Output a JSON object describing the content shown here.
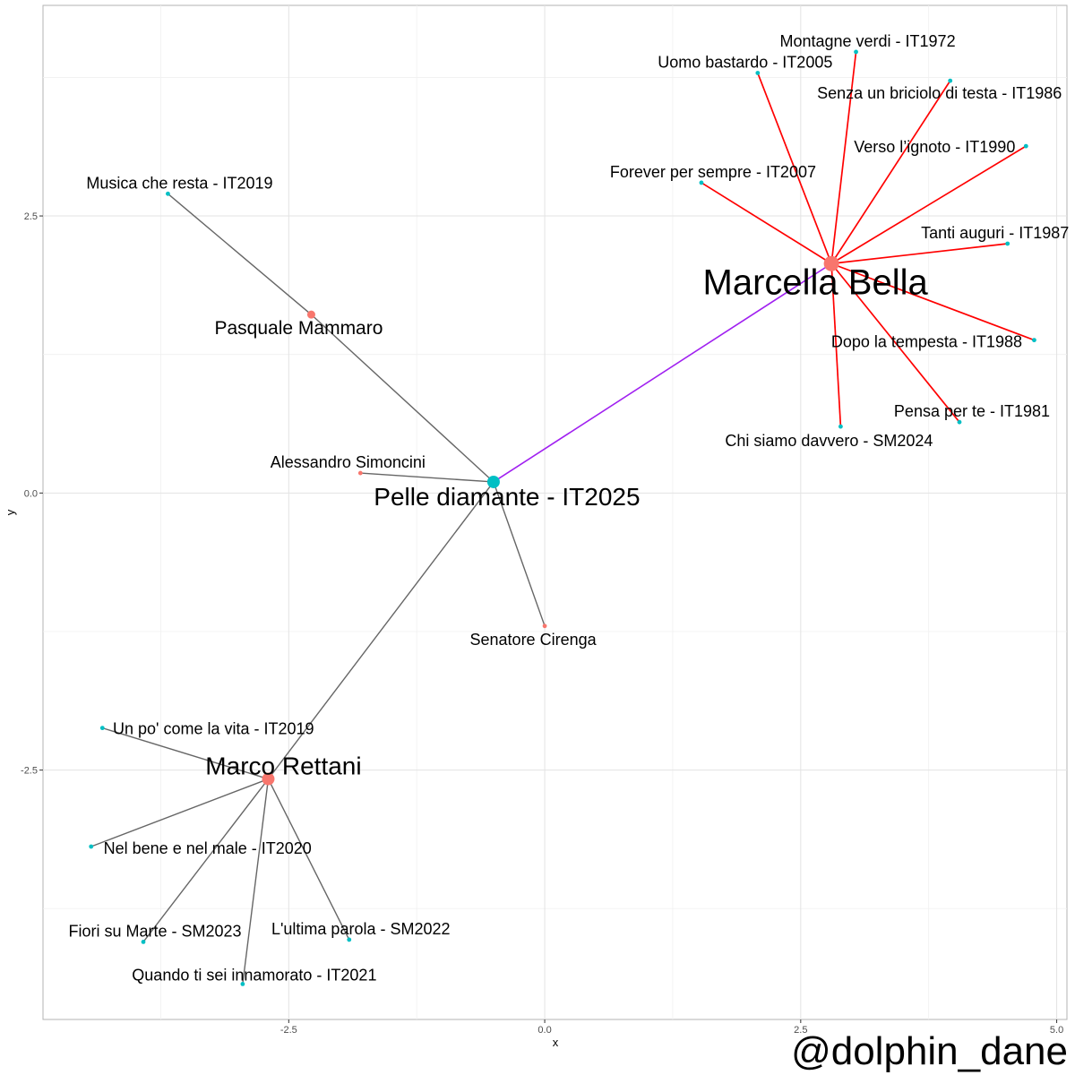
{
  "chart_data": {
    "type": "network",
    "xlabel": "x",
    "ylabel": "y",
    "xlim": [
      -4.9,
      5.1
    ],
    "ylim": [
      -4.75,
      4.4
    ],
    "x_ticks": [
      -2.5,
      0.0,
      2.5,
      5.0
    ],
    "x_tick_labels": [
      "-2.5",
      "0.0",
      "2.5",
      "5.0"
    ],
    "y_ticks": [
      -2.5,
      0.0,
      2.5
    ],
    "y_tick_labels": [
      "-2.5",
      "0.0",
      "2.5"
    ],
    "grid": true,
    "colors": {
      "artist": "#F8766D",
      "song": "#00BFC4",
      "edge_default": "#666666",
      "edge_marcella": "#FF0000",
      "edge_bridge": "#A020F0"
    },
    "nodes": [
      {
        "id": "pelle",
        "label": "Pelle diamante - IT2025",
        "kind": "song",
        "x": -0.5,
        "y": 0.1,
        "size": "large"
      },
      {
        "id": "marcella",
        "label": "Marcella Bella",
        "kind": "artist",
        "x": 2.8,
        "y": 2.07,
        "size": "xlarge"
      },
      {
        "id": "rettani",
        "label": "Marco Rettani",
        "kind": "artist",
        "x": -2.7,
        "y": -2.58,
        "size": "large"
      },
      {
        "id": "mammaro",
        "label": "Pasquale Mammaro",
        "kind": "artist",
        "x": -2.28,
        "y": 1.61,
        "size": "small"
      },
      {
        "id": "simoncini",
        "label": "Alessandro Simoncini",
        "kind": "artist",
        "x": -1.8,
        "y": 0.18,
        "size": "tiny"
      },
      {
        "id": "cirenga",
        "label": "Senatore Cirenga",
        "kind": "artist",
        "x": 0.0,
        "y": -1.2,
        "size": "tiny"
      },
      {
        "id": "musica",
        "label": "Musica che resta - IT2019",
        "kind": "song",
        "x": -3.68,
        "y": 2.7,
        "size": "tiny"
      },
      {
        "id": "montagne",
        "label": "Montagne verdi - IT1972",
        "kind": "song",
        "x": 3.04,
        "y": 3.98,
        "size": "tiny"
      },
      {
        "id": "uomo",
        "label": "Uomo bastardo - IT2005",
        "kind": "song",
        "x": 2.08,
        "y": 3.79,
        "size": "tiny"
      },
      {
        "id": "senza",
        "label": "Senza un briciolo di testa - IT1986",
        "kind": "song",
        "x": 3.96,
        "y": 3.72,
        "size": "tiny"
      },
      {
        "id": "verso",
        "label": "Verso l’ignoto - IT1990",
        "kind": "song",
        "x": 4.7,
        "y": 3.13,
        "size": "tiny"
      },
      {
        "id": "forever",
        "label": "Forever per sempre - IT2007",
        "kind": "song",
        "x": 1.53,
        "y": 2.8,
        "size": "tiny"
      },
      {
        "id": "tanti",
        "label": "Tanti auguri - IT1987",
        "kind": "song",
        "x": 4.52,
        "y": 2.25,
        "size": "tiny"
      },
      {
        "id": "dopo",
        "label": "Dopo la tempesta - IT1988",
        "kind": "song",
        "x": 4.78,
        "y": 1.38,
        "size": "tiny"
      },
      {
        "id": "pensa",
        "label": "Pensa per te - IT1981",
        "kind": "song",
        "x": 4.05,
        "y": 0.64,
        "size": "tiny"
      },
      {
        "id": "chi",
        "label": "Chi siamo davvero - SM2024",
        "kind": "song",
        "x": 2.89,
        "y": 0.6,
        "size": "tiny"
      },
      {
        "id": "unpo",
        "label": "Un po' come la vita - IT2019",
        "kind": "song",
        "x": -4.32,
        "y": -2.12,
        "size": "tiny"
      },
      {
        "id": "nelbene",
        "label": "Nel bene e nel male - IT2020",
        "kind": "song",
        "x": -4.43,
        "y": -3.19,
        "size": "tiny"
      },
      {
        "id": "fiori",
        "label": "Fiori su Marte - SM2023",
        "kind": "song",
        "x": -3.92,
        "y": -4.05,
        "size": "tiny"
      },
      {
        "id": "ultima",
        "label": "L'ultima parola - SM2022",
        "kind": "song",
        "x": -1.91,
        "y": -4.03,
        "size": "tiny"
      },
      {
        "id": "quando",
        "label": "Quando ti sei innamorato - IT2021",
        "kind": "song",
        "x": -2.95,
        "y": -4.43,
        "size": "tiny"
      }
    ],
    "edges": [
      {
        "source": "pelle",
        "target": "marcella",
        "color": "bridge"
      },
      {
        "source": "pelle",
        "target": "mammaro",
        "color": "default"
      },
      {
        "source": "pelle",
        "target": "simoncini",
        "color": "default"
      },
      {
        "source": "pelle",
        "target": "cirenga",
        "color": "default"
      },
      {
        "source": "pelle",
        "target": "rettani",
        "color": "default"
      },
      {
        "source": "mammaro",
        "target": "musica",
        "color": "default"
      },
      {
        "source": "marcella",
        "target": "montagne",
        "color": "marcella"
      },
      {
        "source": "marcella",
        "target": "uomo",
        "color": "marcella"
      },
      {
        "source": "marcella",
        "target": "senza",
        "color": "marcella"
      },
      {
        "source": "marcella",
        "target": "verso",
        "color": "marcella"
      },
      {
        "source": "marcella",
        "target": "forever",
        "color": "marcella"
      },
      {
        "source": "marcella",
        "target": "tanti",
        "color": "marcella"
      },
      {
        "source": "marcella",
        "target": "dopo",
        "color": "marcella"
      },
      {
        "source": "marcella",
        "target": "pensa",
        "color": "marcella"
      },
      {
        "source": "marcella",
        "target": "chi",
        "color": "marcella"
      },
      {
        "source": "rettani",
        "target": "unpo",
        "color": "default"
      },
      {
        "source": "rettani",
        "target": "nelbene",
        "color": "default"
      },
      {
        "source": "rettani",
        "target": "fiori",
        "color": "default"
      },
      {
        "source": "rettani",
        "target": "ultima",
        "color": "default"
      },
      {
        "source": "rettani",
        "target": "quando",
        "color": "default"
      }
    ]
  },
  "watermark": "@dolphin_dane"
}
